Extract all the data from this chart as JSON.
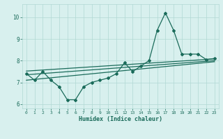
{
  "xlabel": "Humidex (Indice chaleur)",
  "x_values": [
    0,
    1,
    2,
    3,
    4,
    5,
    6,
    7,
    8,
    9,
    10,
    11,
    12,
    13,
    14,
    15,
    16,
    17,
    18,
    19,
    20,
    21,
    22,
    23
  ],
  "y_values": [
    7.4,
    7.1,
    7.5,
    7.1,
    6.8,
    6.2,
    6.2,
    6.8,
    7.0,
    7.1,
    7.2,
    7.4,
    7.9,
    7.5,
    7.75,
    8.0,
    9.4,
    10.2,
    9.4,
    8.3,
    8.3,
    8.3,
    8.05,
    8.1
  ],
  "line_color": "#1a6b5a",
  "bg_color": "#d8f0ee",
  "grid_color": "#b0d8d4",
  "ylim": [
    5.8,
    10.6
  ],
  "xlim": [
    -0.5,
    23.5
  ],
  "yticks": [
    6,
    7,
    8,
    9,
    10
  ],
  "xticks": [
    0,
    1,
    2,
    3,
    4,
    5,
    6,
    7,
    8,
    9,
    10,
    11,
    12,
    13,
    14,
    15,
    16,
    17,
    18,
    19,
    20,
    21,
    22,
    23
  ],
  "trend_line1": [
    7.1,
    7.95
  ],
  "trend_line2": [
    7.35,
    8.0
  ],
  "trend_line3": [
    7.52,
    8.08
  ]
}
